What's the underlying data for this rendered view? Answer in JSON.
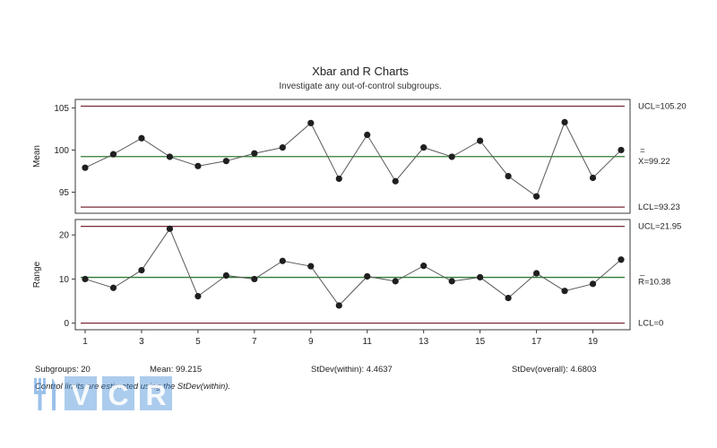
{
  "chart_data": {
    "title": "Xbar and R Charts",
    "subtitle": "Investigate any out-of-control subgroups.",
    "x": [
      1,
      2,
      3,
      4,
      5,
      6,
      7,
      8,
      9,
      10,
      11,
      12,
      13,
      14,
      15,
      16,
      17,
      18,
      19,
      20
    ],
    "x_tick_labels": [
      "1",
      "3",
      "5",
      "7",
      "9",
      "11",
      "13",
      "15",
      "17",
      "19"
    ],
    "charts": [
      {
        "type": "line",
        "name": "xbar",
        "ylabel": "Mean",
        "ylim": [
          92.5,
          106
        ],
        "y_ticks": [
          95,
          100,
          105
        ],
        "values": [
          97.9,
          99.5,
          101.4,
          99.2,
          98.1,
          98.7,
          99.6,
          100.3,
          103.2,
          96.6,
          101.8,
          96.3,
          100.3,
          99.2,
          101.1,
          96.9,
          94.5,
          103.3,
          96.7,
          100.0
        ],
        "limits": {
          "ucl": {
            "value": 105.2,
            "label": "UCL=105.20"
          },
          "center": {
            "value": 99.22,
            "label_top": "=",
            "label": "X=99.22"
          },
          "lcl": {
            "value": 93.23,
            "label": "LCL=93.23"
          }
        }
      },
      {
        "type": "line",
        "name": "range",
        "ylabel": "Range",
        "ylim": [
          -1.5,
          23.5
        ],
        "y_ticks": [
          0,
          10,
          20
        ],
        "values": [
          10.0,
          8.0,
          12.0,
          21.4,
          6.1,
          10.8,
          10.0,
          14.1,
          12.9,
          4.0,
          10.6,
          9.5,
          13.0,
          9.5,
          10.4,
          5.7,
          11.3,
          7.3,
          8.9,
          14.4
        ],
        "limits": {
          "ucl": {
            "value": 21.95,
            "label": "UCL=21.95"
          },
          "center": {
            "value": 10.38,
            "label_top": "_",
            "label": "R=10.38"
          },
          "lcl": {
            "value": 0,
            "label": "LCL=0"
          }
        }
      }
    ],
    "grid": false,
    "colors": {
      "limit_line": "#7a2a3a",
      "center_line": "#2e7d32",
      "series_line": "#5a5a5a",
      "point": "#1f1f1f",
      "frame": "#3a3a3a"
    }
  },
  "stats": {
    "subgroups": "Subgroups: 20",
    "mean": "Mean: 99.215",
    "stdev_within": "StDev(within): 4.4637",
    "stdev_overall": "StDev(overall): 4.6803"
  },
  "note": "Control limits are estimated using the StDev(within).",
  "watermark": {
    "text": "VCR",
    "icon": "fork-knife-icon",
    "color": "#4a90d9"
  }
}
